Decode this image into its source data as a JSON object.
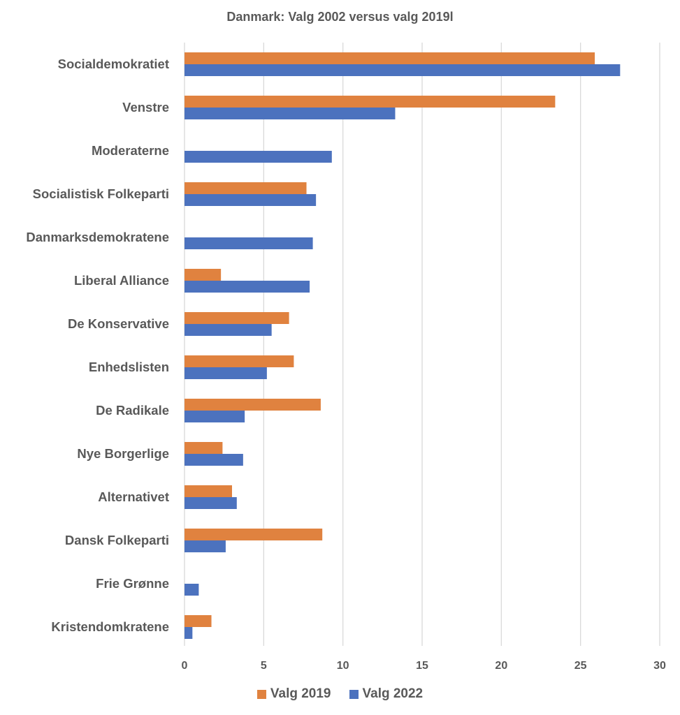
{
  "chart_data": {
    "type": "bar",
    "orientation": "horizontal",
    "title": "Danmark: Valg 2002 versus valg 2019l",
    "xlabel": "",
    "ylabel": "",
    "xlim": [
      0,
      30
    ],
    "xticks": [
      "0",
      "5",
      "10",
      "15",
      "20",
      "25",
      "30"
    ],
    "grid": true,
    "legend_position": "bottom",
    "categories": [
      "Socialdemokratiet",
      "Venstre",
      "Moderaterne",
      "Socialistisk Folkeparti",
      "Danmarksdemokratene",
      "Liberal Alliance",
      "De Konservative",
      "Enhedslisten",
      "De Radikale",
      "Nye Borgerlige",
      "Alternativet",
      "Dansk Folkeparti",
      "Frie Grønne",
      "Kristendomkratene"
    ],
    "series": [
      {
        "name": "Valg 2019",
        "color": "#E0823F",
        "values": [
          25.9,
          23.4,
          0,
          7.7,
          0,
          2.3,
          6.6,
          6.9,
          8.6,
          2.4,
          3.0,
          8.7,
          0,
          1.7
        ]
      },
      {
        "name": "Valg 2022",
        "color": "#4C72BE",
        "values": [
          27.5,
          13.3,
          9.3,
          8.3,
          8.1,
          7.9,
          5.5,
          5.2,
          3.8,
          3.7,
          3.3,
          2.6,
          0.9,
          0.5
        ]
      }
    ]
  }
}
